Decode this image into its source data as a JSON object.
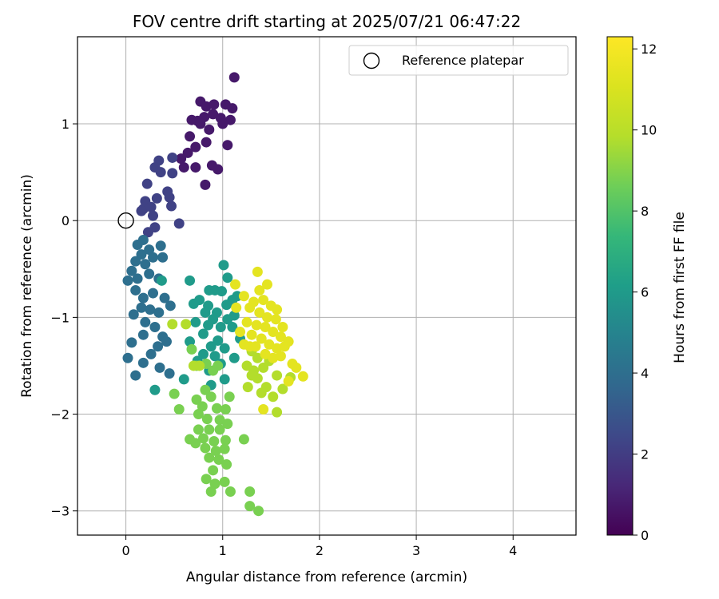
{
  "chart_data": {
    "type": "scatter",
    "title": "FOV centre drift starting at 2025/07/21 06:47:22",
    "xlabel": "Angular distance from reference (arcmin)",
    "ylabel": "Rotation from reference (arcmin)",
    "xlim": [
      -0.5,
      4.65
    ],
    "ylim": [
      -3.25,
      1.9
    ],
    "xticks": [
      "0",
      "1",
      "2",
      "3",
      "4"
    ],
    "yticks": [
      "−3",
      "−2",
      "−1",
      "0",
      "1"
    ],
    "grid": true,
    "legend": {
      "placement": "top-right",
      "entries": [
        "Reference platepar"
      ]
    },
    "reference_point": {
      "x": 0,
      "y": 0
    },
    "colorbar": {
      "label": "Hours from first FF file",
      "range": [
        0,
        12.3
      ],
      "ticks": [
        "0",
        "2",
        "4",
        "6",
        "8",
        "10",
        "12"
      ],
      "colormap": "viridis"
    },
    "points_hours_0_1_5": [
      [
        1.12,
        1.48
      ],
      [
        0.77,
        1.23
      ],
      [
        0.83,
        1.18
      ],
      [
        0.91,
        1.2
      ],
      [
        1.03,
        1.2
      ],
      [
        1.1,
        1.16
      ],
      [
        0.9,
        1.1
      ],
      [
        0.81,
        1.07
      ],
      [
        0.68,
        1.04
      ],
      [
        0.74,
        1.03
      ],
      [
        0.98,
        1.06
      ],
      [
        1.08,
        1.04
      ],
      [
        1.0,
        1.0
      ],
      [
        0.77,
        1.0
      ],
      [
        0.86,
        0.94
      ],
      [
        0.66,
        0.87
      ],
      [
        0.72,
        0.76
      ],
      [
        0.83,
        0.81
      ],
      [
        1.05,
        0.78
      ],
      [
        0.64,
        0.7
      ],
      [
        0.57,
        0.64
      ],
      [
        0.6,
        0.55
      ],
      [
        0.72,
        0.55
      ],
      [
        0.89,
        0.57
      ],
      [
        0.95,
        0.53
      ],
      [
        0.82,
        0.37
      ]
    ],
    "points_hours_1_5_3": [
      [
        0.48,
        0.65
      ],
      [
        0.34,
        0.62
      ],
      [
        0.3,
        0.55
      ],
      [
        0.36,
        0.5
      ],
      [
        0.48,
        0.49
      ],
      [
        0.22,
        0.38
      ],
      [
        0.43,
        0.3
      ],
      [
        0.45,
        0.24
      ],
      [
        0.32,
        0.23
      ],
      [
        0.2,
        0.2
      ],
      [
        0.18,
        0.12
      ],
      [
        0.16,
        0.1
      ],
      [
        0.26,
        0.14
      ],
      [
        0.47,
        0.15
      ],
      [
        0.28,
        0.05
      ],
      [
        0.3,
        -0.07
      ],
      [
        0.55,
        -0.03
      ],
      [
        0.23,
        -0.12
      ]
    ],
    "points_hours_3_5": [
      [
        0.18,
        -0.2
      ],
      [
        0.12,
        -0.25
      ],
      [
        0.24,
        -0.3
      ],
      [
        0.36,
        -0.26
      ],
      [
        0.16,
        -0.35
      ],
      [
        0.1,
        -0.42
      ],
      [
        0.2,
        -0.45
      ],
      [
        0.28,
        -0.38
      ],
      [
        0.38,
        -0.38
      ],
      [
        0.06,
        -0.52
      ],
      [
        0.12,
        -0.6
      ],
      [
        0.24,
        -0.55
      ],
      [
        0.34,
        -0.6
      ],
      [
        0.02,
        -0.62
      ],
      [
        0.1,
        -0.72
      ],
      [
        0.18,
        -0.8
      ],
      [
        0.28,
        -0.75
      ],
      [
        0.4,
        -0.8
      ],
      [
        0.46,
        -0.88
      ],
      [
        0.08,
        -0.97
      ],
      [
        0.16,
        -0.9
      ],
      [
        0.25,
        -0.92
      ],
      [
        0.34,
        -0.95
      ],
      [
        0.2,
        -1.05
      ],
      [
        0.3,
        -1.1
      ],
      [
        0.18,
        -1.18
      ],
      [
        0.38,
        -1.2
      ],
      [
        0.42,
        -1.25
      ],
      [
        0.06,
        -1.26
      ],
      [
        0.33,
        -1.3
      ],
      [
        0.26,
        -1.38
      ],
      [
        0.02,
        -1.42
      ],
      [
        0.18,
        -1.47
      ],
      [
        0.35,
        -1.52
      ],
      [
        0.1,
        -1.6
      ],
      [
        0.45,
        -1.58
      ]
    ],
    "points_hours_5_7": [
      [
        0.37,
        -0.62
      ],
      [
        0.66,
        -0.62
      ],
      [
        1.01,
        -0.46
      ],
      [
        1.05,
        -0.59
      ],
      [
        0.86,
        -0.72
      ],
      [
        0.92,
        -0.72
      ],
      [
        0.99,
        -0.73
      ],
      [
        1.15,
        -0.78
      ],
      [
        1.1,
        -0.82
      ],
      [
        0.76,
        -0.82
      ],
      [
        0.7,
        -0.86
      ],
      [
        0.85,
        -0.88
      ],
      [
        1.04,
        -0.87
      ],
      [
        0.82,
        -0.95
      ],
      [
        0.94,
        -0.95
      ],
      [
        1.12,
        -0.98
      ],
      [
        0.9,
        -1.02
      ],
      [
        1.05,
        -1.02
      ],
      [
        0.72,
        -1.05
      ],
      [
        0.85,
        -1.08
      ],
      [
        0.98,
        -1.1
      ],
      [
        1.1,
        -1.1
      ],
      [
        0.8,
        -1.17
      ],
      [
        1.18,
        -1.22
      ],
      [
        0.66,
        -1.25
      ],
      [
        0.95,
        -1.24
      ],
      [
        0.88,
        -1.3
      ],
      [
        1.02,
        -1.32
      ],
      [
        0.8,
        -1.38
      ],
      [
        0.92,
        -1.4
      ],
      [
        1.12,
        -1.42
      ],
      [
        0.74,
        -1.45
      ],
      [
        0.98,
        -1.48
      ],
      [
        0.86,
        -1.55
      ],
      [
        0.6,
        -1.64
      ],
      [
        0.3,
        -1.75
      ],
      [
        0.88,
        -1.7
      ],
      [
        1.02,
        -1.64
      ]
    ],
    "points_hours_7_9": [
      [
        0.68,
        -1.33
      ],
      [
        0.73,
        -1.5
      ],
      [
        0.83,
        -1.48
      ],
      [
        0.9,
        -1.55
      ],
      [
        0.95,
        -1.5
      ],
      [
        0.82,
        -1.75
      ],
      [
        0.88,
        -1.82
      ],
      [
        0.73,
        -1.85
      ],
      [
        0.79,
        -1.92
      ],
      [
        0.94,
        -1.94
      ],
      [
        1.03,
        -1.95
      ],
      [
        1.07,
        -1.82
      ],
      [
        0.75,
        -2.0
      ],
      [
        0.84,
        -2.05
      ],
      [
        0.97,
        -2.06
      ],
      [
        0.75,
        -2.16
      ],
      [
        0.86,
        -2.16
      ],
      [
        0.97,
        -2.16
      ],
      [
        1.05,
        -2.1
      ],
      [
        0.8,
        -2.25
      ],
      [
        0.91,
        -2.28
      ],
      [
        1.03,
        -2.27
      ],
      [
        0.66,
        -2.26
      ],
      [
        0.72,
        -2.3
      ],
      [
        0.82,
        -2.35
      ],
      [
        0.93,
        -2.38
      ],
      [
        1.02,
        -2.36
      ],
      [
        0.86,
        -2.45
      ],
      [
        0.96,
        -2.47
      ],
      [
        1.04,
        -2.52
      ],
      [
        0.9,
        -2.58
      ],
      [
        1.22,
        -2.26
      ],
      [
        0.83,
        -2.67
      ],
      [
        0.92,
        -2.72
      ],
      [
        1.02,
        -2.7
      ],
      [
        0.88,
        -2.8
      ],
      [
        1.08,
        -2.8
      ],
      [
        1.28,
        -2.8
      ],
      [
        1.28,
        -2.95
      ],
      [
        1.37,
        -3.0
      ],
      [
        0.5,
        -1.79
      ],
      [
        0.55,
        -1.95
      ]
    ],
    "points_hours_9_10_5": [
      [
        0.48,
        -1.07
      ],
      [
        0.62,
        -1.07
      ],
      [
        1.25,
        -1.5
      ],
      [
        1.32,
        -1.55
      ],
      [
        1.36,
        -1.63
      ],
      [
        1.42,
        -1.52
      ],
      [
        1.3,
        -1.35
      ],
      [
        1.36,
        -1.42
      ],
      [
        1.48,
        -1.45
      ],
      [
        1.26,
        -1.72
      ],
      [
        1.4,
        -1.78
      ],
      [
        1.52,
        -1.82
      ],
      [
        1.56,
        -1.98
      ],
      [
        1.62,
        -1.74
      ],
      [
        1.7,
        -1.62
      ],
      [
        1.56,
        -1.6
      ],
      [
        0.7,
        -1.5
      ],
      [
        0.76,
        -1.5
      ],
      [
        1.45,
        -1.72
      ],
      [
        1.3,
        -1.6
      ]
    ],
    "points_hours_10_5_12_3": [
      [
        1.13,
        -0.66
      ],
      [
        1.36,
        -0.53
      ],
      [
        1.46,
        -0.66
      ],
      [
        1.22,
        -0.78
      ],
      [
        1.32,
        -0.84
      ],
      [
        1.42,
        -0.82
      ],
      [
        1.5,
        -0.88
      ],
      [
        1.56,
        -0.92
      ],
      [
        1.28,
        -0.9
      ],
      [
        1.38,
        -0.95
      ],
      [
        1.46,
        -1.0
      ],
      [
        1.55,
        -1.02
      ],
      [
        1.62,
        -1.1
      ],
      [
        1.25,
        -1.05
      ],
      [
        1.35,
        -1.08
      ],
      [
        1.44,
        -1.1
      ],
      [
        1.52,
        -1.15
      ],
      [
        1.6,
        -1.2
      ],
      [
        1.68,
        -1.25
      ],
      [
        1.3,
        -1.18
      ],
      [
        1.4,
        -1.22
      ],
      [
        1.48,
        -1.28
      ],
      [
        1.56,
        -1.32
      ],
      [
        1.64,
        -1.3
      ],
      [
        1.22,
        -1.28
      ],
      [
        1.34,
        -1.3
      ],
      [
        1.44,
        -1.38
      ],
      [
        1.52,
        -1.42
      ],
      [
        1.6,
        -1.4
      ],
      [
        1.72,
        -1.48
      ],
      [
        1.76,
        -1.52
      ],
      [
        1.83,
        -1.61
      ],
      [
        1.68,
        -1.66
      ],
      [
        1.42,
        -1.95
      ],
      [
        1.28,
        -1.3
      ],
      [
        1.18,
        -1.15
      ],
      [
        1.38,
        -0.72
      ],
      [
        1.14,
        -0.9
      ]
    ]
  }
}
